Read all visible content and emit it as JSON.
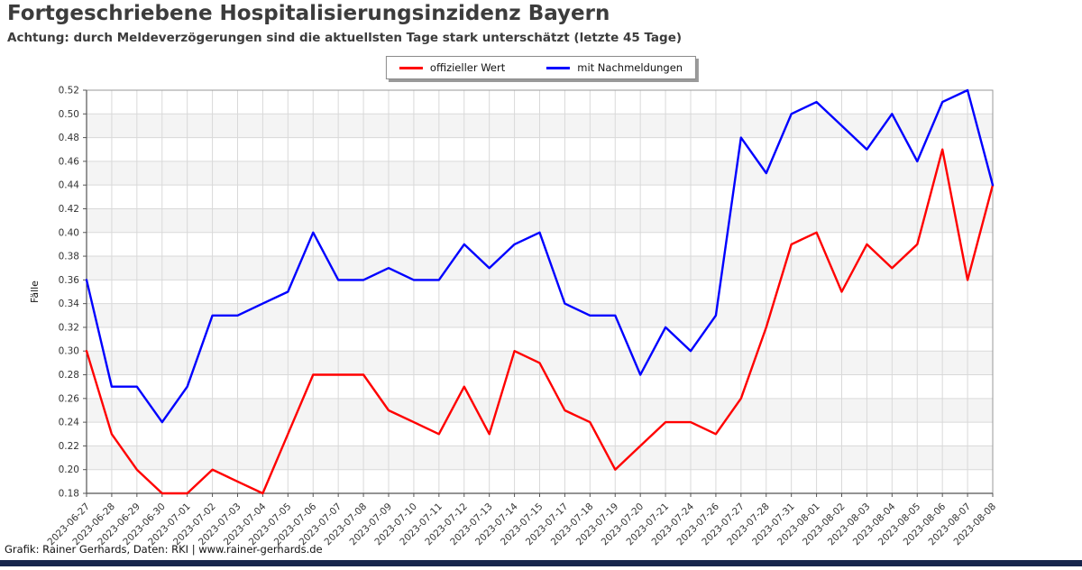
{
  "header": {
    "title": "Fortgeschriebene Hospitalisierungsinzidenz Bayern",
    "subtitle": "Achtung: durch Meldeverzögerungen sind die aktuellsten Tage stark unterschätzt (letzte 45 Tage)"
  },
  "legend": {
    "items": [
      {
        "label": "offizieller Wert",
        "color": "#ff0000"
      },
      {
        "label": "mit Nachmeldungen",
        "color": "#0000ff"
      }
    ]
  },
  "footer": {
    "credit": "Grafik: Rainer Gerhards, Daten: RKI | www.rainer-gerhards.de"
  },
  "colors": {
    "band": "#f4f4f4",
    "grid": "#d9d9d9",
    "frame": "#999999",
    "axis": "#555555",
    "tick_text": "#333333",
    "footer_bar": "#16254c"
  },
  "chart_data": {
    "type": "line",
    "title": "Fortgeschriebene Hospitalisierungsinzidenz Bayern",
    "xlabel": "",
    "ylabel": "Fälle",
    "ylim": [
      0.18,
      0.52
    ],
    "ytick_step": 0.02,
    "grid": true,
    "legend_position": "top-center",
    "categories": [
      "2023-06-27",
      "2023-06-28",
      "2023-06-29",
      "2023-06-30",
      "2023-07-01",
      "2023-07-02",
      "2023-07-03",
      "2023-07-04",
      "2023-07-05",
      "2023-07-06",
      "2023-07-07",
      "2023-07-08",
      "2023-07-09",
      "2023-07-10",
      "2023-07-11",
      "2023-07-12",
      "2023-07-13",
      "2023-07-14",
      "2023-07-15",
      "2023-07-17",
      "2023-07-18",
      "2023-07-19",
      "2023-07-20",
      "2023-07-21",
      "2023-07-24",
      "2023-07-26",
      "2023-07-27",
      "2023-07-28",
      "2023-07-31",
      "2023-08-01",
      "2023-08-02",
      "2023-08-03",
      "2023-08-04",
      "2023-08-05",
      "2023-08-06",
      "2023-08-07",
      "2023-08-08"
    ],
    "series": [
      {
        "name": "offizieller Wert",
        "color": "#ff0000",
        "values": [
          0.3,
          0.23,
          0.2,
          0.18,
          0.18,
          0.2,
          0.19,
          0.18,
          0.23,
          0.28,
          0.28,
          0.28,
          0.25,
          0.24,
          0.23,
          0.27,
          0.23,
          0.3,
          0.29,
          0.25,
          0.24,
          0.2,
          0.22,
          0.24,
          0.24,
          0.23,
          0.26,
          0.32,
          0.39,
          0.4,
          0.35,
          0.39,
          0.37,
          0.39,
          0.47,
          0.36,
          0.44
        ]
      },
      {
        "name": "mit Nachmeldungen",
        "color": "#0000ff",
        "values": [
          0.36,
          0.27,
          0.27,
          0.24,
          0.27,
          0.33,
          0.33,
          0.34,
          0.35,
          0.4,
          0.36,
          0.36,
          0.37,
          0.36,
          0.36,
          0.39,
          0.37,
          0.39,
          0.4,
          0.34,
          0.33,
          0.33,
          0.28,
          0.32,
          0.3,
          0.33,
          0.48,
          0.45,
          0.5,
          0.51,
          0.49,
          0.47,
          0.5,
          0.46,
          0.51,
          0.52,
          0.44
        ]
      }
    ]
  }
}
